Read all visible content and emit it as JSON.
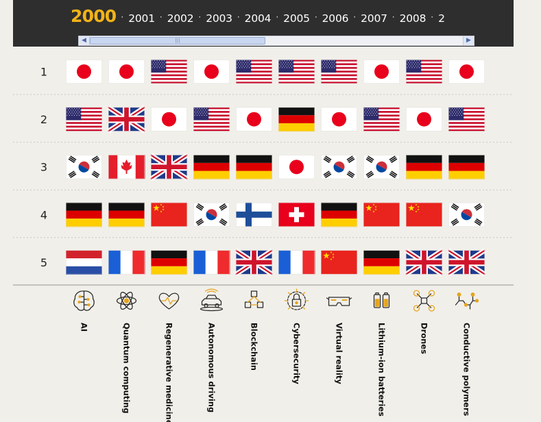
{
  "timeline": {
    "years": [
      "2000",
      "2001",
      "2002",
      "2003",
      "2004",
      "2005",
      "2006",
      "2007",
      "2008",
      "2"
    ],
    "selected": "2000",
    "separator": "·"
  },
  "scrollbar": {
    "left_arrow": "◀",
    "right_arrow": "▶",
    "thumb_grip": "|||"
  },
  "chart_data": {
    "type": "table",
    "rows": [
      "1",
      "2",
      "3",
      "4",
      "5"
    ],
    "categories": [
      "AI",
      "Quantum computing",
      "Regenerative medicine",
      "Autonomous driving",
      "Blockchain",
      "Cybersecurity",
      "Virtual reality",
      "Lithium-ion batteries",
      "Drones",
      "Conductive polymers"
    ],
    "category_icons": [
      "brain-circuit-icon",
      "atom-icon",
      "heart-pulse-icon",
      "autonomous-car-icon",
      "blockchain-cubes-icon",
      "security-lock-icon",
      "vr-goggles-icon",
      "battery-icon",
      "drone-icon",
      "polymer-molecule-icon"
    ],
    "flags": [
      [
        "japan",
        "japan",
        "usa",
        "japan",
        "usa",
        "usa",
        "usa",
        "japan",
        "usa",
        "japan"
      ],
      [
        "usa",
        "uk",
        "japan",
        "usa",
        "japan",
        "germany",
        "japan",
        "usa",
        "japan",
        "usa"
      ],
      [
        "south-korea",
        "canada",
        "uk",
        "germany",
        "germany",
        "japan",
        "south-korea",
        "south-korea",
        "germany",
        "germany"
      ],
      [
        "germany",
        "germany",
        "china",
        "south-korea",
        "finland",
        "switzerland",
        "germany",
        "china",
        "china",
        "south-korea"
      ],
      [
        "netherlands",
        "france",
        "germany",
        "france",
        "uk",
        "france",
        "china",
        "germany",
        "uk",
        "uk"
      ]
    ]
  },
  "colors": {
    "header_bg": "#2e2e2e",
    "active_year": "#f1b318",
    "page_bg": "#f1efea",
    "icon_gold": "#e5a51c"
  }
}
